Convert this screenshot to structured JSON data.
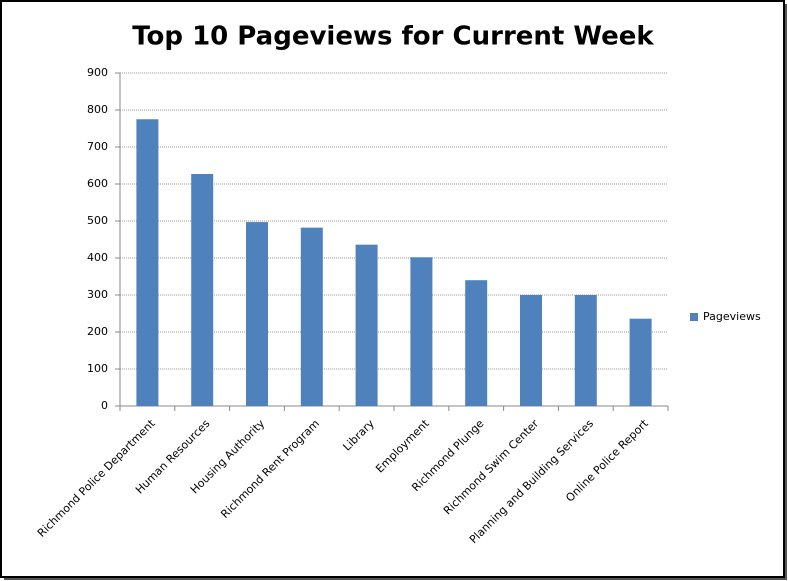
{
  "chart_data": {
    "type": "bar",
    "title": "Top 10 Pageviews for Current Week",
    "categories": [
      "Richmond Police Department",
      "Human Resources",
      "Housing Authority",
      "Richmond Rent Program",
      "Library",
      "Employment",
      "Richmond Plunge",
      "Richmond Swim Center",
      "Planning and Building Services",
      "Online Police Report"
    ],
    "series": [
      {
        "name": "Pageviews",
        "color": "#4f81bd",
        "values": [
          775,
          627,
          497,
          482,
          436,
          402,
          340,
          300,
          300,
          236
        ]
      }
    ],
    "ylim": [
      0,
      900
    ],
    "yticks": [
      0,
      100,
      200,
      300,
      400,
      500,
      600,
      700,
      800,
      900
    ],
    "grid": true,
    "legend": "right"
  }
}
